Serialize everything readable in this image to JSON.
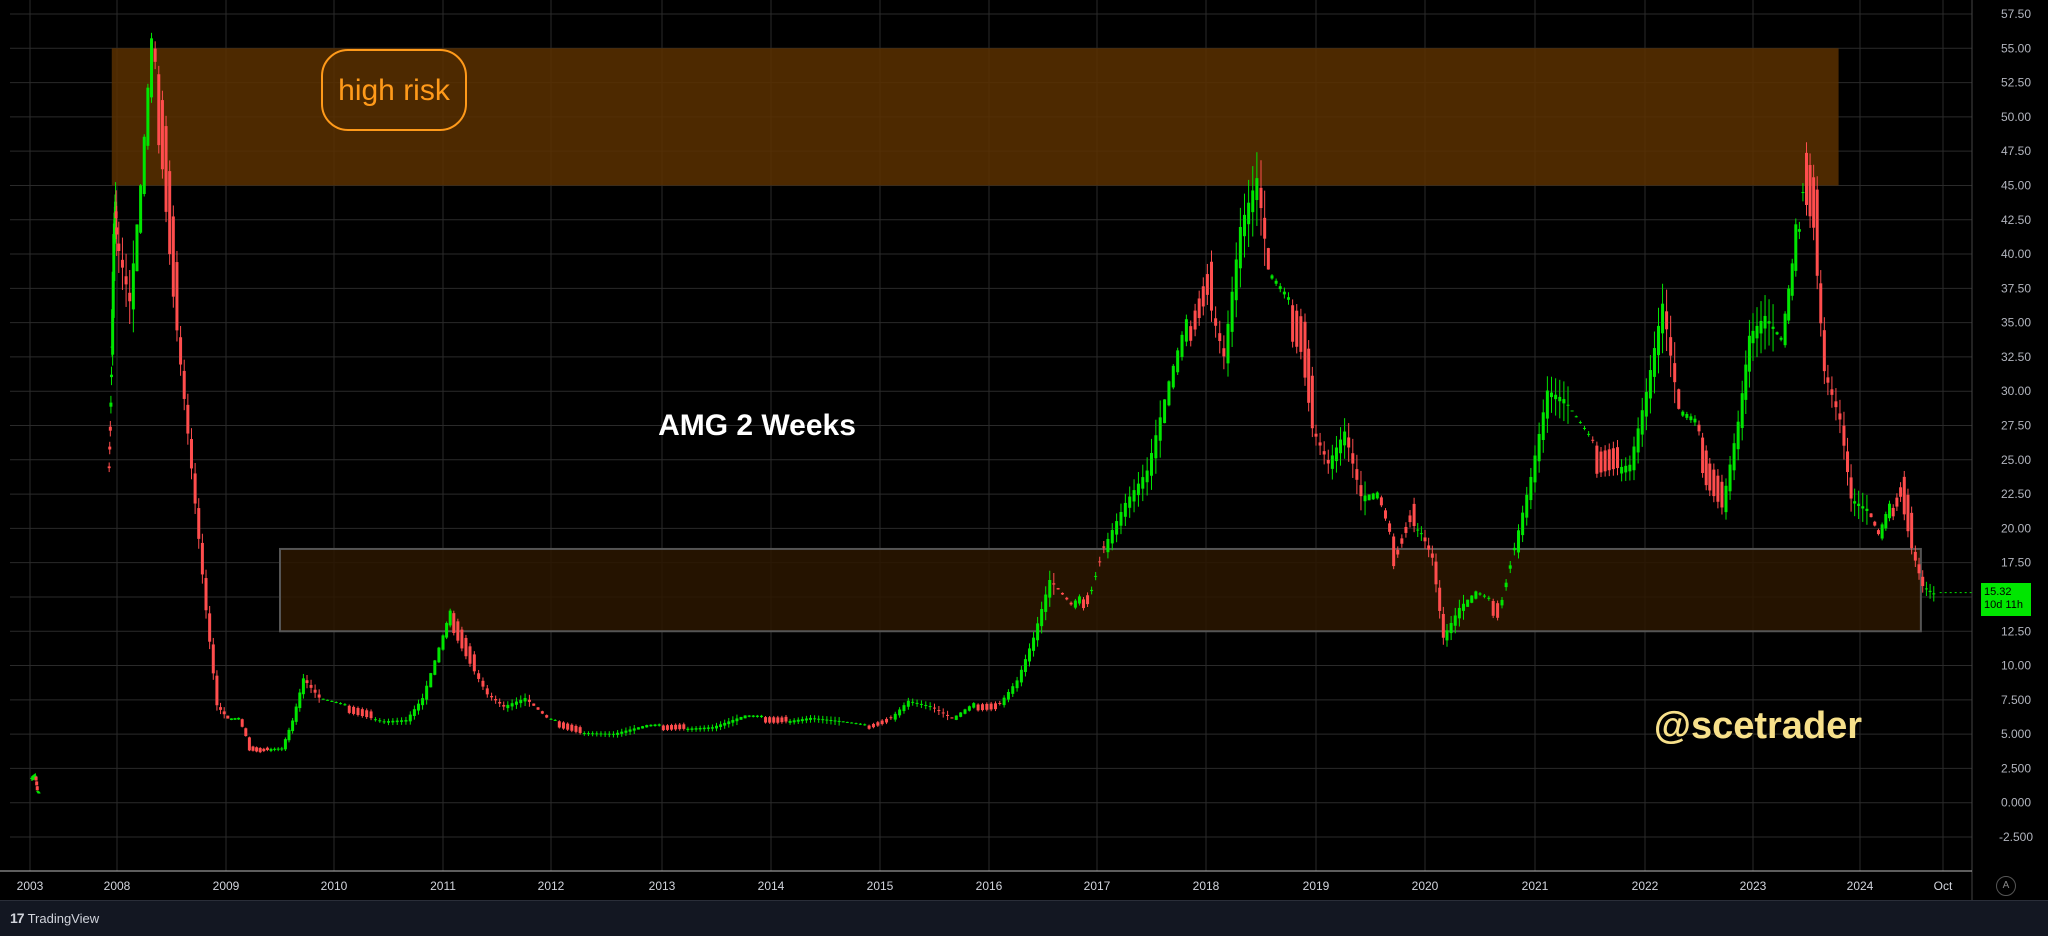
{
  "chart_data": {
    "type": "candlestick",
    "symbol_title": "AMG 2 Weeks",
    "watermark": "@scetrader",
    "y_axis_ticks": [
      "57.50",
      "55.00",
      "52.50",
      "50.00",
      "47.50",
      "45.00",
      "42.50",
      "40.00",
      "37.50",
      "35.00",
      "32.50",
      "30.00",
      "27.50",
      "25.00",
      "22.50",
      "20.00",
      "17.50",
      "15.00",
      "12.50",
      "10.00",
      "7.500",
      "5.000",
      "2.500",
      "0.000",
      "-2.500"
    ],
    "y_tick_values": [
      57.5,
      55,
      52.5,
      50,
      47.5,
      45,
      42.5,
      40,
      37.5,
      35,
      32.5,
      30,
      27.5,
      25,
      22.5,
      20,
      17.5,
      15,
      12.5,
      10,
      7.5,
      5,
      2.5,
      0,
      -2.5
    ],
    "x_axis_labels": [
      "2003",
      "2008",
      "2009",
      "2010",
      "2011",
      "2012",
      "2013",
      "2014",
      "2015",
      "2016",
      "2017",
      "2018",
      "2019",
      "2020",
      "2021",
      "2022",
      "2023",
      "2024",
      "Oct"
    ],
    "x_label_years": [
      2003,
      2008,
      2009,
      2010,
      2011,
      2012,
      2013,
      2014,
      2015,
      2016,
      2017,
      2018,
      2019,
      2020,
      2021,
      2022,
      2023,
      2024,
      2024.75
    ],
    "ylim": [
      -3.5,
      58.5
    ],
    "zones": [
      {
        "label": "high risk",
        "y_from": 45,
        "y_to": 55,
        "x_from": 2007.7,
        "x_to": 2023.8,
        "color": "#5a3000"
      },
      {
        "label": "",
        "y_from": 12.5,
        "y_to": 18.5,
        "x_from": 2009.5,
        "x_to": 2024.55,
        "color": "#2b1600"
      }
    ],
    "last_price": "15.32",
    "countdown": "10d 11h",
    "price_path": [
      [
        2003.1,
        1.8
      ],
      [
        2003.35,
        1.9
      ],
      [
        2003.45,
        0.8
      ],
      [
        2003.55,
        0.6
      ],
      [
        2007.55,
        24
      ],
      [
        2007.65,
        28
      ],
      [
        2007.75,
        34
      ],
      [
        2007.85,
        42
      ],
      [
        2007.95,
        44
      ],
      [
        2008.05,
        40
      ],
      [
        2008.15,
        36
      ],
      [
        2008.25,
        44
      ],
      [
        2008.35,
        54
      ],
      [
        2008.45,
        48
      ],
      [
        2008.55,
        38
      ],
      [
        2008.65,
        30
      ],
      [
        2008.75,
        22
      ],
      [
        2008.85,
        14
      ],
      [
        2008.95,
        7
      ],
      [
        2009.05,
        6
      ],
      [
        2009.15,
        6
      ],
      [
        2009.25,
        4
      ],
      [
        2009.35,
        3.8
      ],
      [
        2009.45,
        4
      ],
      [
        2009.55,
        4
      ],
      [
        2009.65,
        6
      ],
      [
        2009.75,
        9
      ],
      [
        2009.9,
        7.5
      ],
      [
        2010.1,
        7
      ],
      [
        2010.3,
        6.5
      ],
      [
        2010.5,
        6
      ],
      [
        2010.7,
        6
      ],
      [
        2010.85,
        7.5
      ],
      [
        2011.0,
        11
      ],
      [
        2011.1,
        13.5
      ],
      [
        2011.25,
        11
      ],
      [
        2011.45,
        8
      ],
      [
        2011.6,
        7
      ],
      [
        2011.8,
        7.5
      ],
      [
        2012.0,
        6
      ],
      [
        2012.3,
        5.2
      ],
      [
        2012.6,
        5
      ],
      [
        2012.9,
        5.5
      ],
      [
        2013.2,
        5.5
      ],
      [
        2013.5,
        5.5
      ],
      [
        2013.8,
        6.2
      ],
      [
        2014.1,
        6
      ],
      [
        2014.4,
        6.2
      ],
      [
        2014.7,
        5.8
      ],
      [
        2014.9,
        5.5
      ],
      [
        2015.1,
        6
      ],
      [
        2015.3,
        7.5
      ],
      [
        2015.5,
        7
      ],
      [
        2015.7,
        6
      ],
      [
        2015.9,
        7
      ],
      [
        2016.1,
        7
      ],
      [
        2016.3,
        9
      ],
      [
        2016.45,
        12
      ],
      [
        2016.6,
        16
      ],
      [
        2016.8,
        14
      ],
      [
        2016.95,
        15
      ],
      [
        2017.1,
        19
      ],
      [
        2017.3,
        22
      ],
      [
        2017.5,
        24
      ],
      [
        2017.7,
        30
      ],
      [
        2017.9,
        35
      ],
      [
        2018.05,
        38
      ],
      [
        2018.2,
        33
      ],
      [
        2018.35,
        42
      ],
      [
        2018.5,
        45
      ],
      [
        2018.6,
        38
      ],
      [
        2018.75,
        36
      ],
      [
        2018.9,
        34
      ],
      [
        2019.0,
        28
      ],
      [
        2019.15,
        25
      ],
      [
        2019.3,
        27
      ],
      [
        2019.45,
        22
      ],
      [
        2019.6,
        22
      ],
      [
        2019.75,
        18
      ],
      [
        2019.9,
        21
      ],
      [
        2020.0,
        20
      ],
      [
        2020.1,
        18
      ],
      [
        2020.2,
        12
      ],
      [
        2020.35,
        14
      ],
      [
        2020.5,
        15
      ],
      [
        2020.7,
        14
      ],
      [
        2020.85,
        19
      ],
      [
        2021.0,
        24
      ],
      [
        2021.15,
        30
      ],
      [
        2021.3,
        29
      ],
      [
        2021.45,
        27
      ],
      [
        2021.6,
        25
      ],
      [
        2021.75,
        25
      ],
      [
        2021.9,
        25
      ],
      [
        2022.05,
        30
      ],
      [
        2022.2,
        36
      ],
      [
        2022.35,
        28
      ],
      [
        2022.5,
        27
      ],
      [
        2022.6,
        24
      ],
      [
        2022.75,
        22
      ],
      [
        2022.9,
        28
      ],
      [
        2023.0,
        34
      ],
      [
        2023.15,
        35
      ],
      [
        2023.3,
        33
      ],
      [
        2023.4,
        38
      ],
      [
        2023.5,
        46
      ],
      [
        2023.6,
        43
      ],
      [
        2023.7,
        32
      ],
      [
        2023.85,
        28
      ],
      [
        2023.95,
        22
      ],
      [
        2024.1,
        21
      ],
      [
        2024.2,
        19
      ],
      [
        2024.3,
        21
      ],
      [
        2024.4,
        23
      ],
      [
        2024.5,
        19
      ],
      [
        2024.6,
        16
      ],
      [
        2024.7,
        15.3
      ]
    ],
    "grid": true,
    "up_color": "#00e600",
    "down_color": "#ff4d4d"
  },
  "footer": {
    "brand": "TradingView",
    "auto_button": "A"
  }
}
